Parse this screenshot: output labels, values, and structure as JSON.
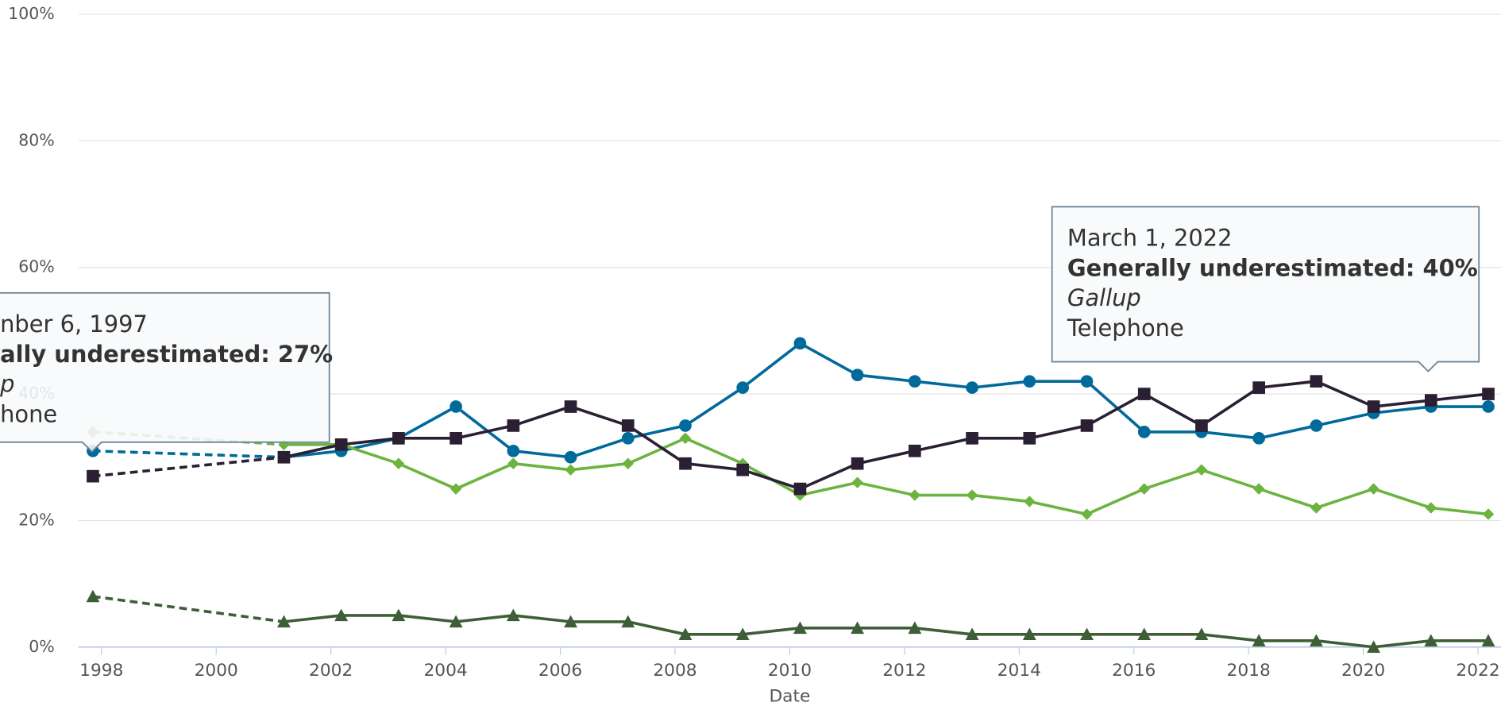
{
  "chart_data": {
    "type": "line",
    "x_label": "Date",
    "xlim": [
      1997.6,
      2022.4
    ],
    "xticks": [
      1998,
      2000,
      2002,
      2004,
      2006,
      2008,
      2010,
      2012,
      2014,
      2016,
      2018,
      2020,
      2022
    ],
    "ylim": [
      0,
      100
    ],
    "yticks": [
      {
        "value": 0,
        "label": "0%"
      },
      {
        "value": 20,
        "label": "20%"
      },
      {
        "value": 40,
        "label": "40%"
      },
      {
        "value": 60,
        "label": "60%"
      },
      {
        "value": 80,
        "label": "80%"
      },
      {
        "value": 100,
        "label": "100%"
      }
    ],
    "grid": true,
    "dash_first_segment": true,
    "x": [
      1997.85,
      2001.18,
      2002.18,
      2003.18,
      2004.18,
      2005.18,
      2006.18,
      2007.18,
      2008.18,
      2009.18,
      2010.18,
      2011.18,
      2012.18,
      2013.18,
      2014.18,
      2015.18,
      2016.18,
      2017.18,
      2018.18,
      2019.18,
      2020.18,
      2021.18,
      2022.18
    ],
    "series": [
      {
        "color": "#006a9a",
        "marker": "circle",
        "values": [
          31,
          30,
          31,
          33,
          38,
          31,
          30,
          33,
          35,
          41,
          48,
          43,
          42,
          41,
          42,
          42,
          34,
          34,
          33,
          35,
          37,
          38,
          38
        ]
      },
      {
        "color": "#6db33f",
        "marker": "diamond",
        "values": [
          34,
          32,
          32,
          29,
          25,
          29,
          28,
          29,
          33,
          29,
          24,
          26,
          24,
          24,
          23,
          21,
          25,
          28,
          25,
          22,
          25,
          22,
          21
        ]
      },
      {
        "color": "#3d5e36",
        "marker": "triangle",
        "values": [
          8,
          4,
          5,
          5,
          4,
          5,
          4,
          4,
          2,
          2,
          3,
          3,
          3,
          2,
          2,
          2,
          2,
          2,
          1,
          1,
          0,
          1,
          1
        ]
      },
      {
        "name": "Generally underestimated",
        "color": "#2b1f33",
        "marker": "square",
        "values": [
          27,
          30,
          32,
          33,
          33,
          35,
          38,
          35,
          29,
          28,
          25,
          29,
          31,
          33,
          33,
          35,
          40,
          35,
          41,
          42,
          38,
          39,
          40
        ]
      }
    ],
    "tooltips": [
      {
        "lines": [
          "nber 6, 1997",
          "ally underestimated: 27%",
          "p",
          "hone"
        ]
      },
      {
        "lines": [
          "March 1, 2022",
          "Generally underestimated: 40%",
          "Gallup",
          "Telephone"
        ]
      }
    ]
  }
}
